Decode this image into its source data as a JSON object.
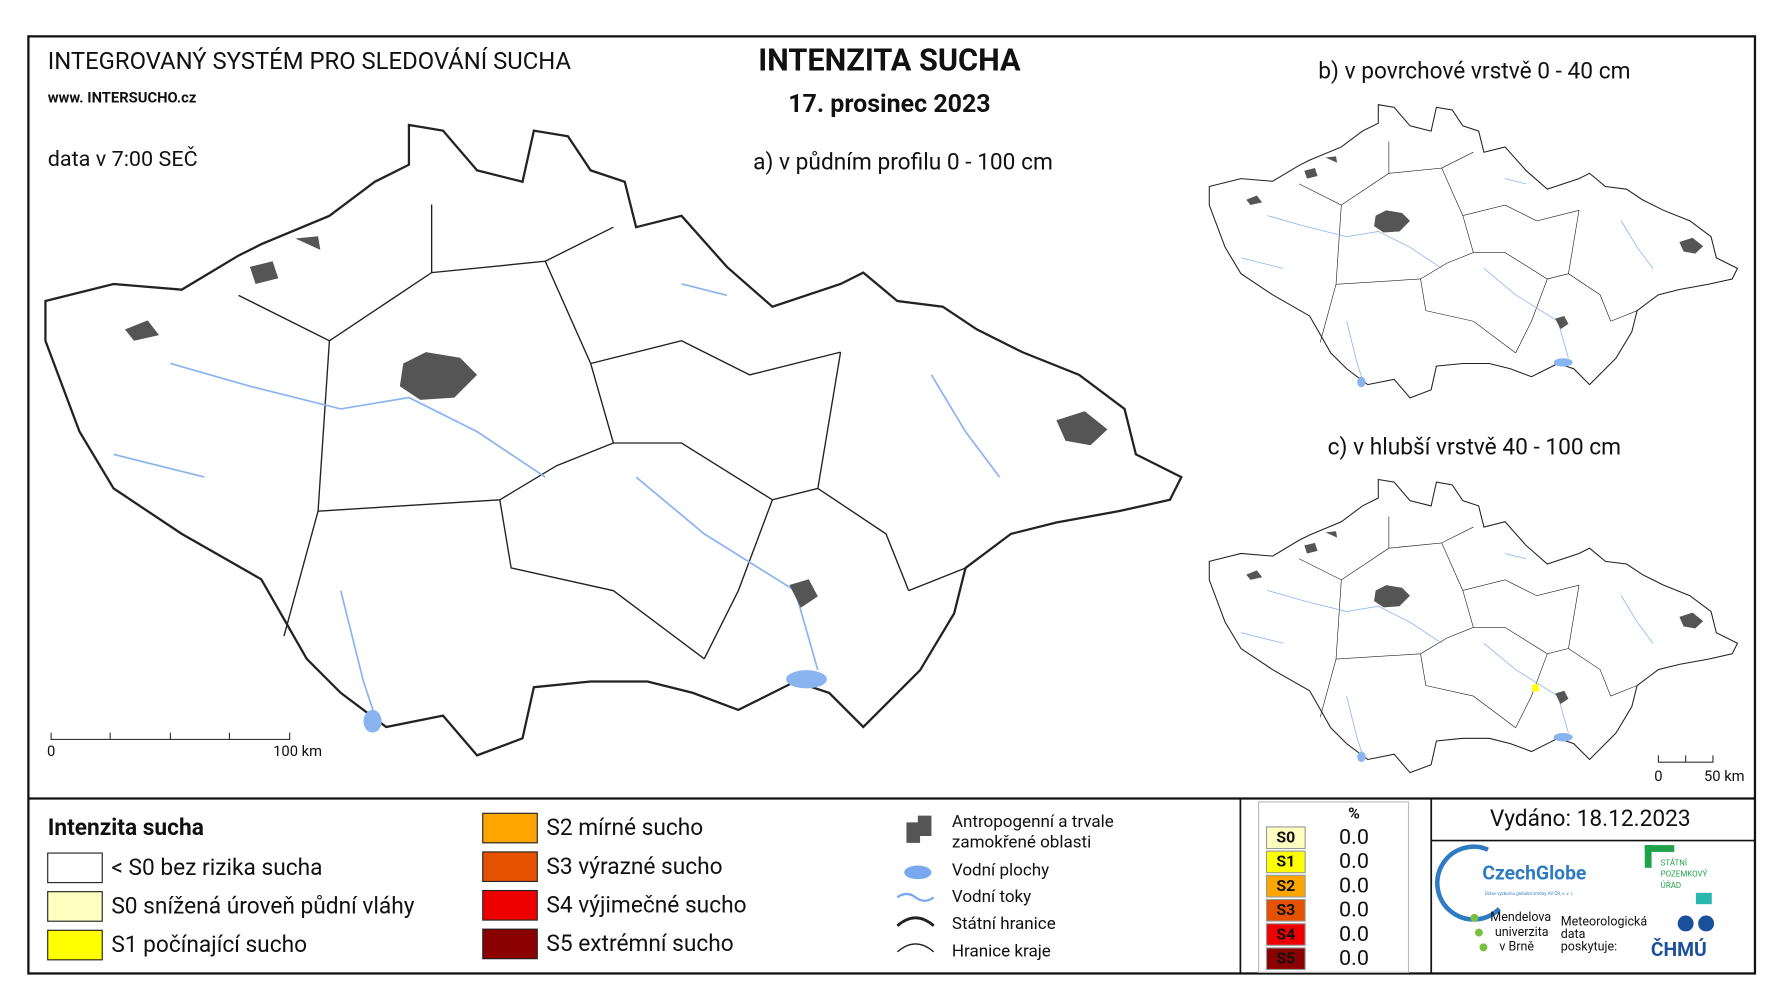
{
  "header": {
    "system": "INTEGROVANÝ SYSTÉM PRO SLEDOVÁNÍ SUCHA",
    "website": "www. INTERSUCHO.cz",
    "data_time": "data v 7:00 SEČ",
    "title": "INTENZITA SUCHA",
    "date": "17. prosinec 2023"
  },
  "maps": [
    {
      "label": "a) v půdním profilu 0 - 100 cm",
      "scale": [
        "0",
        "100 km"
      ]
    },
    {
      "label": "b) v povrchové vrstvě 0 - 40 cm"
    },
    {
      "label": "c) v hlubší vrstvě 40 - 100 cm",
      "scale": [
        "0",
        "50 km"
      ]
    }
  ],
  "legend": {
    "title": "Intenzita sucha",
    "items": [
      {
        "label": "< S0 bez rizika sucha",
        "color": "#ffffff"
      },
      {
        "label": "S0 snížená úroveň půdní vláhy",
        "color": "#ffffc0"
      },
      {
        "label": "S1 počínající sucho",
        "color": "#ffff00"
      },
      {
        "label": "S2 mírné sucho",
        "color": "#ffa500"
      },
      {
        "label": "S3 výrazné sucho",
        "color": "#e65100"
      },
      {
        "label": "S4 výjimečné sucho",
        "color": "#ee0000"
      },
      {
        "label": "S5 extrémní sucho",
        "color": "#8b0000"
      }
    ]
  },
  "symbols": [
    {
      "lines": [
        "Antropogenní a trvale",
        "zamokřené oblasti"
      ]
    },
    {
      "lines": [
        "Vodní plochy"
      ]
    },
    {
      "lines": [
        "Vodní toky"
      ]
    },
    {
      "lines": [
        "Státní hranice"
      ]
    },
    {
      "lines": [
        "Hranice kraje"
      ]
    }
  ],
  "stats": {
    "header": "%",
    "rows": [
      {
        "class": "S0",
        "value": "0.0",
        "color": "#ffffc0"
      },
      {
        "class": "S1",
        "value": "0.0",
        "color": "#ffff00"
      },
      {
        "class": "S2",
        "value": "0.0",
        "color": "#ffa500"
      },
      {
        "class": "S3",
        "value": "0.0",
        "color": "#e65100"
      },
      {
        "class": "S4",
        "value": "0.0",
        "color": "#ee0000"
      },
      {
        "class": "S5",
        "value": "0.0",
        "color": "#8b0000"
      }
    ]
  },
  "issued": "Vydáno: 18.12.2023",
  "logos": {
    "czechglobe": "CzechGlobe",
    "czechglobe_sub": "Ústav výzkumu globální změny AV ČR, v. v. i.",
    "spu": [
      "STÁTNÍ",
      "POZEMKOVÝ",
      "ÚŘAD"
    ],
    "mendelu": [
      "Mendelova",
      "univerzita",
      "v Brně"
    ],
    "provider": [
      "Meteorologická",
      "data",
      "poskytuje:"
    ],
    "chmu": "ČHMÚ"
  }
}
